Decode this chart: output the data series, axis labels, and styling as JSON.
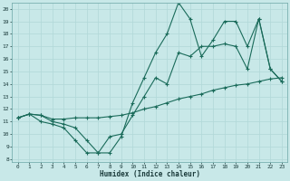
{
  "xlabel": "Humidex (Indice chaleur)",
  "bg_color": "#c8e8e8",
  "line_color": "#1a6b5a",
  "grid_color": "#b0d8d8",
  "xlim": [
    0,
    23
  ],
  "ylim": [
    8,
    20
  ],
  "yticks": [
    8,
    9,
    10,
    11,
    12,
    13,
    14,
    15,
    16,
    17,
    18,
    19,
    20
  ],
  "xticks": [
    0,
    1,
    2,
    3,
    4,
    5,
    6,
    7,
    8,
    9,
    10,
    11,
    12,
    13,
    14,
    15,
    16,
    17,
    18,
    19,
    20,
    21,
    22,
    23
  ],
  "line1_x": [
    0,
    1,
    2,
    3,
    4,
    5,
    6,
    7,
    8,
    9,
    10,
    11,
    12,
    13,
    14,
    15,
    16,
    17,
    18,
    19,
    20,
    21,
    22,
    23
  ],
  "line1_y": [
    11.3,
    11.6,
    11.5,
    11.0,
    10.8,
    10.5,
    9.5,
    8.5,
    8.5,
    9.8,
    12.5,
    14.5,
    16.5,
    18.0,
    20.5,
    19.2,
    16.2,
    17.5,
    19.0,
    19.0,
    17.0,
    19.2,
    15.2,
    14.2
  ],
  "line2_x": [
    0,
    1,
    2,
    3,
    4,
    5,
    6,
    7,
    8,
    9,
    10,
    11,
    12,
    13,
    14,
    15,
    16,
    17,
    18,
    19,
    20,
    21,
    22,
    23
  ],
  "line2_y": [
    11.3,
    11.6,
    11.0,
    10.8,
    10.5,
    9.5,
    8.5,
    8.5,
    9.8,
    10.0,
    11.5,
    13.0,
    14.5,
    14.0,
    16.5,
    16.2,
    17.0,
    17.0,
    17.2,
    17.0,
    15.2,
    19.2,
    15.2,
    14.2
  ],
  "line3_x": [
    0,
    1,
    2,
    3,
    4,
    5,
    6,
    7,
    8,
    9,
    10,
    11,
    12,
    13,
    14,
    15,
    16,
    17,
    18,
    19,
    20,
    21,
    22,
    23
  ],
  "line3_y": [
    11.3,
    11.6,
    11.5,
    11.2,
    11.2,
    11.3,
    11.3,
    11.3,
    11.4,
    11.5,
    11.7,
    12.0,
    12.2,
    12.5,
    12.8,
    13.0,
    13.2,
    13.5,
    13.7,
    13.9,
    14.0,
    14.2,
    14.4,
    14.5
  ]
}
